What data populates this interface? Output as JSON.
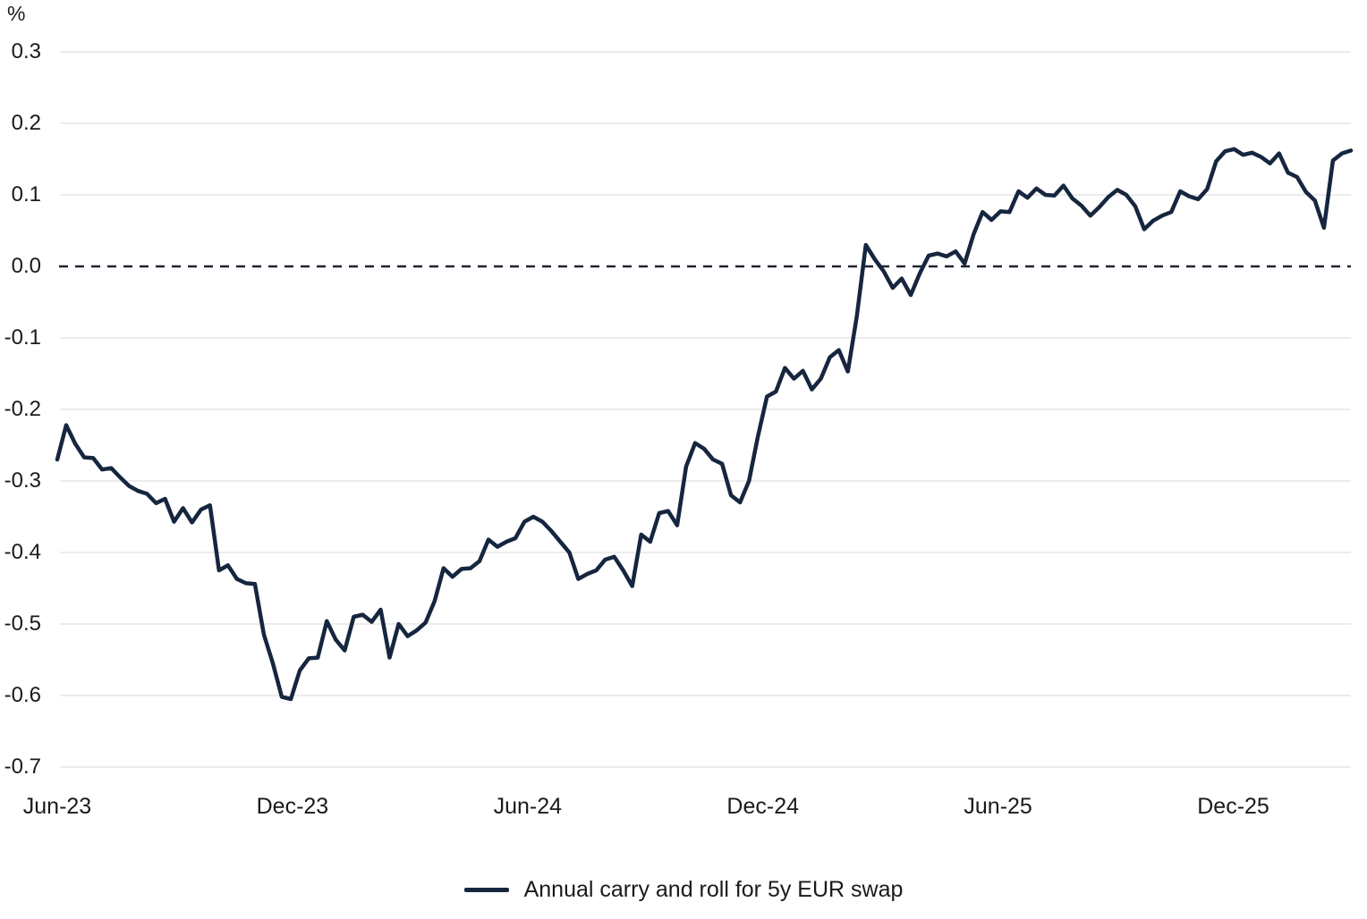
{
  "colors": {
    "background": "#ffffff",
    "gridline": "#d9d9d9",
    "text": "#1a1a1a",
    "zero_line": "#1d2430",
    "series_line": "#16263f"
  },
  "chart_data": {
    "type": "line",
    "title": "",
    "unit_label": "%",
    "grid": "horizontal",
    "legend_position": "bottom-center",
    "y_axis": {
      "min": -0.7,
      "max": 0.3,
      "step": 0.1,
      "tick_labels": [
        "0.3",
        "0.2",
        "0.1",
        "0.0",
        "-0.1",
        "-0.2",
        "-0.3",
        "-0.4",
        "-0.5",
        "-0.6",
        "-0.7"
      ],
      "zero_line_style": "dashed"
    },
    "x_axis": {
      "total_months": 33,
      "start": "Jun-23",
      "end": "Mar-26",
      "ticks": [
        {
          "label": "Jun-23",
          "month": 0
        },
        {
          "label": "Dec-23",
          "month": 6
        },
        {
          "label": "Jun-24",
          "month": 12
        },
        {
          "label": "Dec-24",
          "month": 18
        },
        {
          "label": "Jun-25",
          "month": 24
        },
        {
          "label": "Dec-25",
          "month": 30
        }
      ]
    },
    "series": [
      {
        "name": "Annual carry and roll for 5y EUR swap",
        "color": "#16263f",
        "frequency": "weekly",
        "values": [
          -0.27,
          -0.222,
          -0.248,
          -0.267,
          -0.268,
          -0.284,
          -0.282,
          -0.295,
          -0.307,
          -0.314,
          -0.318,
          -0.331,
          -0.325,
          -0.357,
          -0.338,
          -0.358,
          -0.34,
          -0.334,
          -0.425,
          -0.418,
          -0.437,
          -0.443,
          -0.444,
          -0.515,
          -0.555,
          -0.602,
          -0.605,
          -0.565,
          -0.548,
          -0.547,
          -0.496,
          -0.522,
          -0.537,
          -0.49,
          -0.487,
          -0.497,
          -0.48,
          -0.547,
          -0.5,
          -0.517,
          -0.509,
          -0.498,
          -0.468,
          -0.422,
          -0.434,
          -0.423,
          -0.422,
          -0.412,
          -0.382,
          -0.392,
          -0.385,
          -0.38,
          -0.357,
          -0.35,
          -0.357,
          -0.37,
          -0.385,
          -0.4,
          -0.437,
          -0.43,
          -0.425,
          -0.41,
          -0.406,
          -0.425,
          -0.447,
          -0.375,
          -0.385,
          -0.345,
          -0.342,
          -0.362,
          -0.28,
          -0.247,
          -0.255,
          -0.27,
          -0.276,
          -0.32,
          -0.33,
          -0.3,
          -0.237,
          -0.182,
          -0.175,
          -0.142,
          -0.157,
          -0.146,
          -0.172,
          -0.157,
          -0.127,
          -0.117,
          -0.147,
          -0.07,
          0.03,
          0.01,
          -0.007,
          -0.03,
          -0.017,
          -0.04,
          -0.01,
          0.015,
          0.018,
          0.014,
          0.021,
          0.004,
          0.045,
          0.076,
          0.065,
          0.077,
          0.076,
          0.105,
          0.096,
          0.109,
          0.1,
          0.099,
          0.113,
          0.095,
          0.085,
          0.071,
          0.083,
          0.097,
          0.107,
          0.1,
          0.084,
          0.052,
          0.064,
          0.071,
          0.076,
          0.105,
          0.098,
          0.094,
          0.108,
          0.147,
          0.161,
          0.164,
          0.156,
          0.159,
          0.153,
          0.144,
          0.158,
          0.131,
          0.125,
          0.104,
          0.092,
          0.054,
          0.148,
          0.158,
          0.162
        ]
      }
    ]
  }
}
